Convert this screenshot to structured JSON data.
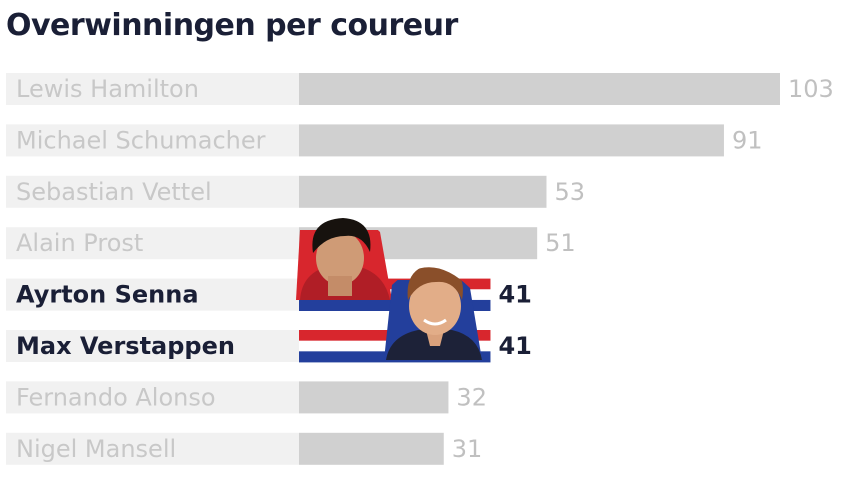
{
  "title": "Overwinningen per coureur",
  "colors": {
    "bar": "#d0d0d0",
    "label_band": "#f1f1f1",
    "muted_text": "#c8c8c8",
    "highlight_text": "#1a1f36",
    "flag_red": "#d8262d",
    "flag_white": "#ffffff",
    "flag_blue": "#233f9c"
  },
  "chart_data": {
    "type": "bar",
    "orientation": "horizontal",
    "title": "Overwinningen per coureur",
    "categories": [
      "Lewis Hamilton",
      "Michael Schumacher",
      "Sebastian Vettel",
      "Alain Prost",
      "Ayrton Senna",
      "Max Verstappen",
      "Fernando Alonso",
      "Nigel Mansell"
    ],
    "values": [
      103,
      91,
      53,
      51,
      41,
      41,
      32,
      31
    ],
    "highlighted": [
      "Ayrton Senna",
      "Max Verstappen"
    ],
    "xlim": [
      0,
      103
    ],
    "grid": false,
    "legend": "none",
    "value_labels": [
      "103",
      "91",
      "53",
      "51",
      "41",
      "41",
      "32",
      "31"
    ]
  },
  "portraits": [
    "portrait-senna-photo",
    "portrait-verstappen-photo"
  ]
}
